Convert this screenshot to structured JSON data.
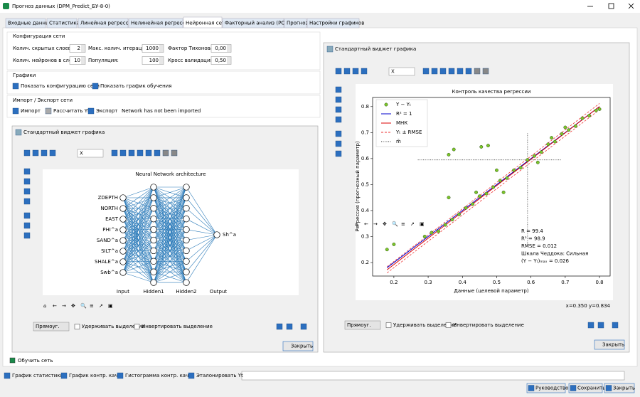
{
  "window": {
    "title": "Прогноз данных (DPM_Predict_БУ-8-0)"
  },
  "tabs": [
    "Входные данные",
    "Статистика",
    "Линейная регрессия",
    "Нелинейная регрессия",
    "Нейронная сеть",
    "Факторный анализ (PCA)",
    "Прогноз",
    "Настройки графиков"
  ],
  "active_tab": 4,
  "config": {
    "title": "Конфигурация сети",
    "fields": [
      {
        "label": "Колич. скрытых слоев:",
        "value": 2
      },
      {
        "label": "Макс. колич. итераций:",
        "value": 1000
      },
      {
        "label": "Фактор Тихонова:",
        "value": "0,00"
      },
      {
        "label": "Колич. нейронов в слое:",
        "value": 10
      },
      {
        "label": "Популяция:",
        "value": 100
      },
      {
        "label": "Кросс валидация:",
        "value": "0,50"
      }
    ]
  },
  "graphs": {
    "title": "Графики",
    "buttons": [
      "Показать конфигурацию сети",
      "Показать график обучения"
    ]
  },
  "import_export": {
    "title": "Импорт / Экспорт сети",
    "buttons": [
      "Импорт",
      "Рассчитать Yt",
      "Экспорт"
    ],
    "status": "Network has not been imported"
  },
  "nn_widget": {
    "title": "Стандартный виджет графика",
    "selector": "X",
    "mode": "Прямоуг.",
    "checks": [
      "Удерживать выделение",
      "Инвертировать выделение"
    ],
    "close": "Закрыть",
    "plot": {
      "title": "Neural Network architecture",
      "inputs": [
        "ZDEPTH",
        "NORTH",
        "EAST",
        "PHI^a",
        "SAND^a",
        "SILT^a",
        "SHALE^a",
        "Swb^a"
      ],
      "output": "Sh^a",
      "layer_labels": [
        "Input",
        "Hidden1",
        "Hidden2",
        "Output"
      ]
    }
  },
  "reg_widget": {
    "title": "Стандартный виджет графика",
    "selector": "X",
    "mode": "Прямоуг.",
    "checks": [
      "Удерживать выделение",
      "Инвертировать выделение"
    ],
    "close": "Закрыть",
    "coords": "x=0.350 y=0.834",
    "chart": {
      "type": "scatter",
      "title": "Контроль качества регрессии",
      "xlabel": "Данные (целевой параметр)",
      "ylabel": "Регрессия (прогнозный параметр)",
      "xlim": [
        0.138,
        0.831
      ],
      "ylim": [
        0.148,
        0.835
      ],
      "xticks": [
        0.2,
        0.3,
        0.4,
        0.5,
        0.6,
        0.7,
        0.8
      ],
      "yticks": [
        0.2,
        0.3,
        0.4,
        0.5,
        0.6,
        0.7,
        0.8
      ],
      "series": [
        {
          "name": "Y − Yₜ",
          "color": "#7cc72a",
          "x": [
            0.18,
            0.2,
            0.29,
            0.31,
            0.33,
            0.35,
            0.37,
            0.39,
            0.41,
            0.43,
            0.45,
            0.47,
            0.49,
            0.51,
            0.53,
            0.55,
            0.57,
            0.59,
            0.61,
            0.63,
            0.65,
            0.67,
            0.69,
            0.71,
            0.73,
            0.75,
            0.77,
            0.79,
            0.8,
            0.36,
            0.375,
            0.455,
            0.475,
            0.5,
            0.36,
            0.52,
            0.62,
            0.7,
            0.44,
            0.66
          ],
          "y": [
            0.25,
            0.27,
            0.3,
            0.315,
            0.32,
            0.345,
            0.365,
            0.385,
            0.41,
            0.425,
            0.455,
            0.465,
            0.49,
            0.515,
            0.525,
            0.555,
            0.565,
            0.595,
            0.61,
            0.625,
            0.655,
            0.665,
            0.695,
            0.71,
            0.725,
            0.755,
            0.765,
            0.785,
            0.79,
            0.615,
            0.635,
            0.645,
            0.65,
            0.555,
            0.45,
            0.47,
            0.585,
            0.72,
            0.47,
            0.68
          ]
        }
      ],
      "lines": [
        {
          "name": "R² = 1",
          "color": "#0000cc",
          "dash": "none",
          "segments": [
            {
              "x": [
                0.18,
                0.8
              ],
              "y": [
                0.18,
                0.8
              ]
            }
          ]
        },
        {
          "name": "МНК",
          "color": "#dd0000",
          "dash": "none",
          "segments": [
            {
              "x": [
                0.18,
                0.8
              ],
              "y": [
                0.172,
                0.8
              ]
            }
          ]
        },
        {
          "name": "Yₜ ± RMSE",
          "color": "#ee3333",
          "dash": "3 2",
          "segments": [
            {
              "x": [
                0.18,
                0.8
              ],
              "y": [
                0.184,
                0.812
              ]
            },
            {
              "x": [
                0.18,
                0.8
              ],
              "y": [
                0.16,
                0.788
              ]
            }
          ]
        },
        {
          "name": "m̄",
          "color": "#333333",
          "dash": "1 1.5",
          "segments": [
            {
              "x": [
                0.59,
                0.59
              ],
              "y": [
                0.27,
                0.7
              ]
            },
            {
              "x": [
                0.27,
                0.69
              ],
              "y": [
                0.595,
                0.595
              ]
            }
          ]
        }
      ],
      "annotation": [
        "R = 99.4",
        "R² = 98.9",
        "RMSE = 0.012",
        "Шкала Чеддока: Сильная",
        "(Y − Yₜ)ₘₐₓ = 0.026"
      ]
    }
  },
  "train_checkbox": "Обучить сеть",
  "bottom": {
    "buttons": [
      "График статистики",
      "График контр. кач.",
      "Гистограмма контр. кач.",
      "Эталонировать Yt"
    ],
    "actions": [
      "Руководство",
      "Сохранить",
      "Закрыть"
    ]
  }
}
